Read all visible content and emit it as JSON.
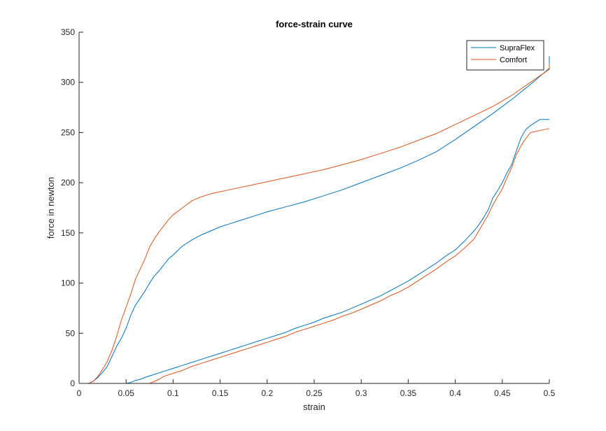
{
  "chart_data": {
    "type": "line",
    "title": "force-strain curve",
    "xlabel": "strain",
    "ylabel": "force in newton",
    "xlim": [
      0,
      0.5
    ],
    "ylim": [
      0,
      350
    ],
    "xticks": [
      0,
      0.05,
      0.1,
      0.15,
      0.2,
      0.25,
      0.3,
      0.35,
      0.4,
      0.45,
      0.5
    ],
    "xtick_labels": [
      "0",
      "0.05",
      "0.1",
      "0.15",
      "0.2",
      "0.25",
      "0.3",
      "0.35",
      "0.4",
      "0.45",
      "0.5"
    ],
    "yticks": [
      0,
      50,
      100,
      150,
      200,
      250,
      300,
      350
    ],
    "ytick_labels": [
      "0",
      "50",
      "100",
      "150",
      "200",
      "250",
      "300",
      "350"
    ],
    "grid": false,
    "legend_position": "top-right",
    "series": [
      {
        "name": "SupraFlex",
        "color": "#0072BD",
        "loading": [
          [
            0,
            0
          ],
          [
            0.01,
            0
          ],
          [
            0.015,
            2
          ],
          [
            0.02,
            6
          ],
          [
            0.025,
            11
          ],
          [
            0.03,
            17
          ],
          [
            0.035,
            27
          ],
          [
            0.04,
            37
          ],
          [
            0.045,
            45
          ],
          [
            0.05,
            55
          ],
          [
            0.055,
            68
          ],
          [
            0.06,
            78
          ],
          [
            0.065,
            85
          ],
          [
            0.07,
            92
          ],
          [
            0.075,
            100
          ],
          [
            0.08,
            107
          ],
          [
            0.085,
            112
          ],
          [
            0.09,
            118
          ],
          [
            0.095,
            124
          ],
          [
            0.1,
            128
          ],
          [
            0.11,
            137
          ],
          [
            0.12,
            143
          ],
          [
            0.13,
            148
          ],
          [
            0.14,
            152
          ],
          [
            0.15,
            156
          ],
          [
            0.16,
            159
          ],
          [
            0.17,
            162
          ],
          [
            0.18,
            165
          ],
          [
            0.19,
            168
          ],
          [
            0.2,
            171
          ],
          [
            0.22,
            176
          ],
          [
            0.24,
            181
          ],
          [
            0.26,
            187
          ],
          [
            0.28,
            193
          ],
          [
            0.3,
            200
          ],
          [
            0.32,
            207
          ],
          [
            0.34,
            214
          ],
          [
            0.36,
            222
          ],
          [
            0.38,
            231
          ],
          [
            0.4,
            243
          ],
          [
            0.42,
            256
          ],
          [
            0.44,
            269
          ],
          [
            0.46,
            283
          ],
          [
            0.48,
            298
          ],
          [
            0.5,
            314
          ],
          [
            0.5,
            326
          ]
        ],
        "unloading": [
          [
            0.5,
            263
          ],
          [
            0.49,
            263
          ],
          [
            0.48,
            257
          ],
          [
            0.475,
            253
          ],
          [
            0.47,
            245
          ],
          [
            0.465,
            232
          ],
          [
            0.46,
            218
          ],
          [
            0.455,
            210
          ],
          [
            0.45,
            200
          ],
          [
            0.445,
            192
          ],
          [
            0.44,
            185
          ],
          [
            0.435,
            173
          ],
          [
            0.43,
            165
          ],
          [
            0.425,
            158
          ],
          [
            0.42,
            152
          ],
          [
            0.41,
            142
          ],
          [
            0.4,
            133
          ],
          [
            0.39,
            127
          ],
          [
            0.38,
            120
          ],
          [
            0.37,
            114
          ],
          [
            0.36,
            108
          ],
          [
            0.35,
            102
          ],
          [
            0.34,
            97
          ],
          [
            0.33,
            92
          ],
          [
            0.32,
            87
          ],
          [
            0.31,
            83
          ],
          [
            0.3,
            79
          ],
          [
            0.29,
            75
          ],
          [
            0.28,
            71
          ],
          [
            0.27,
            68
          ],
          [
            0.26,
            65
          ],
          [
            0.25,
            61
          ],
          [
            0.24,
            58
          ],
          [
            0.23,
            55
          ],
          [
            0.22,
            51
          ],
          [
            0.21,
            48
          ],
          [
            0.2,
            45
          ],
          [
            0.19,
            42
          ],
          [
            0.18,
            39
          ],
          [
            0.17,
            36
          ],
          [
            0.16,
            33
          ],
          [
            0.15,
            30
          ],
          [
            0.14,
            27
          ],
          [
            0.13,
            24
          ],
          [
            0.12,
            21
          ],
          [
            0.11,
            18
          ],
          [
            0.1,
            15
          ],
          [
            0.09,
            12
          ],
          [
            0.08,
            9
          ],
          [
            0.07,
            6
          ],
          [
            0.065,
            4
          ],
          [
            0.06,
            3
          ],
          [
            0.055,
            1
          ],
          [
            0.05,
            0
          ],
          [
            0,
            0
          ]
        ]
      },
      {
        "name": "Comfort",
        "color": "#D95319",
        "loading": [
          [
            0,
            0
          ],
          [
            0.01,
            0
          ],
          [
            0.015,
            2
          ],
          [
            0.02,
            7
          ],
          [
            0.025,
            14
          ],
          [
            0.03,
            22
          ],
          [
            0.035,
            33
          ],
          [
            0.04,
            47
          ],
          [
            0.045,
            63
          ],
          [
            0.05,
            76
          ],
          [
            0.055,
            89
          ],
          [
            0.06,
            104
          ],
          [
            0.065,
            114
          ],
          [
            0.07,
            124
          ],
          [
            0.075,
            136
          ],
          [
            0.08,
            144
          ],
          [
            0.085,
            151
          ],
          [
            0.09,
            157
          ],
          [
            0.095,
            163
          ],
          [
            0.1,
            168
          ],
          [
            0.11,
            175
          ],
          [
            0.12,
            182
          ],
          [
            0.13,
            186
          ],
          [
            0.14,
            189
          ],
          [
            0.15,
            191
          ],
          [
            0.16,
            193
          ],
          [
            0.17,
            195
          ],
          [
            0.18,
            197
          ],
          [
            0.19,
            199
          ],
          [
            0.2,
            201
          ],
          [
            0.22,
            205
          ],
          [
            0.24,
            209
          ],
          [
            0.26,
            213
          ],
          [
            0.28,
            218
          ],
          [
            0.3,
            223
          ],
          [
            0.32,
            229
          ],
          [
            0.34,
            235
          ],
          [
            0.36,
            242
          ],
          [
            0.38,
            249
          ],
          [
            0.4,
            258
          ],
          [
            0.42,
            267
          ],
          [
            0.44,
            276
          ],
          [
            0.46,
            287
          ],
          [
            0.48,
            300
          ],
          [
            0.5,
            313
          ],
          [
            0.5,
            318
          ]
        ],
        "unloading": [
          [
            0.5,
            254
          ],
          [
            0.49,
            252
          ],
          [
            0.48,
            250
          ],
          [
            0.475,
            244
          ],
          [
            0.47,
            237
          ],
          [
            0.465,
            228
          ],
          [
            0.46,
            215
          ],
          [
            0.455,
            205
          ],
          [
            0.45,
            194
          ],
          [
            0.445,
            186
          ],
          [
            0.44,
            178
          ],
          [
            0.435,
            168
          ],
          [
            0.43,
            160
          ],
          [
            0.425,
            152
          ],
          [
            0.42,
            144
          ],
          [
            0.41,
            135
          ],
          [
            0.4,
            127
          ],
          [
            0.39,
            121
          ],
          [
            0.38,
            114
          ],
          [
            0.37,
            108
          ],
          [
            0.36,
            102
          ],
          [
            0.35,
            96
          ],
          [
            0.34,
            91
          ],
          [
            0.33,
            87
          ],
          [
            0.32,
            82
          ],
          [
            0.31,
            78
          ],
          [
            0.3,
            74
          ],
          [
            0.29,
            70
          ],
          [
            0.28,
            67
          ],
          [
            0.27,
            63
          ],
          [
            0.26,
            60
          ],
          [
            0.25,
            57
          ],
          [
            0.24,
            54
          ],
          [
            0.23,
            51
          ],
          [
            0.22,
            47
          ],
          [
            0.21,
            44
          ],
          [
            0.2,
            41
          ],
          [
            0.19,
            38
          ],
          [
            0.18,
            35
          ],
          [
            0.17,
            32
          ],
          [
            0.16,
            29
          ],
          [
            0.15,
            26
          ],
          [
            0.14,
            23
          ],
          [
            0.13,
            20
          ],
          [
            0.12,
            17
          ],
          [
            0.11,
            13
          ],
          [
            0.1,
            10
          ],
          [
            0.09,
            7
          ],
          [
            0.085,
            4
          ],
          [
            0.08,
            2
          ],
          [
            0.075,
            0
          ],
          [
            0,
            0
          ]
        ]
      }
    ]
  }
}
